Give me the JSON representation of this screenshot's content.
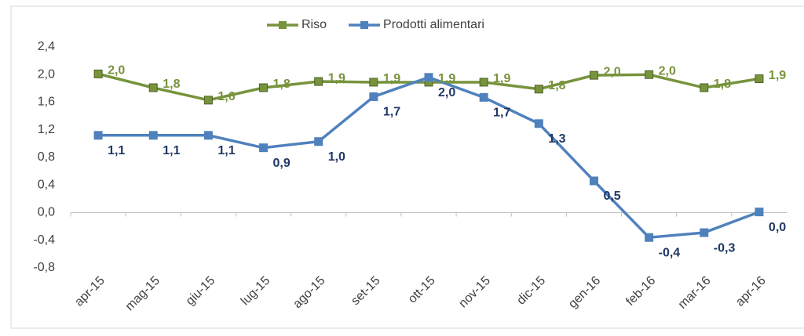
{
  "chart_data": {
    "type": "line",
    "categories": [
      "apr-15",
      "mag-15",
      "giu-15",
      "lug-15",
      "ago-15",
      "set-15",
      "ott-15",
      "nov-15",
      "dic-15",
      "gen-16",
      "feb-16",
      "mar-16",
      "apr-16"
    ],
    "series": [
      {
        "name": "Riso",
        "color": "#77933c",
        "label_color": "#77933c",
        "values": [
          2.01,
          1.81,
          1.63,
          1.81,
          1.9,
          1.89,
          1.89,
          1.89,
          1.79,
          1.99,
          2.0,
          1.81,
          1.94
        ],
        "value_labels": [
          "2,0",
          "1,8",
          "1,6",
          "1,8",
          "1,9",
          "1,9",
          "1,9",
          "1,9",
          "1,8",
          "2,0",
          "2,0",
          "1,8",
          "1,9"
        ]
      },
      {
        "name": "Prodotti alimentari",
        "color": "#4f81bd",
        "label_color": "#1f3864",
        "values": [
          1.12,
          1.12,
          1.12,
          0.94,
          1.03,
          1.68,
          1.96,
          1.67,
          1.29,
          0.46,
          -0.36,
          -0.29,
          0.01
        ],
        "value_labels": [
          "1,1",
          "1,1",
          "1,1",
          "0,9",
          "1,0",
          "1,7",
          "2,0",
          "1,7",
          "1,3",
          "0,5",
          "-0,4",
          "-0,3",
          "0,0"
        ]
      }
    ],
    "ylim": [
      -0.8,
      2.4
    ],
    "yticks": [
      {
        "value": -0.8,
        "label": "-0,8"
      },
      {
        "value": -0.4,
        "label": "-0,4"
      },
      {
        "value": 0,
        "label": "0,0"
      },
      {
        "value": 0.4,
        "label": "0,4"
      },
      {
        "value": 0.8,
        "label": "0,8"
      },
      {
        "value": 1.2,
        "label": "1,2"
      },
      {
        "value": 1.6,
        "label": "1,6"
      },
      {
        "value": 2.0,
        "label": "2,0"
      },
      {
        "value": 2.4,
        "label": "2,4"
      }
    ],
    "legend": "top"
  }
}
